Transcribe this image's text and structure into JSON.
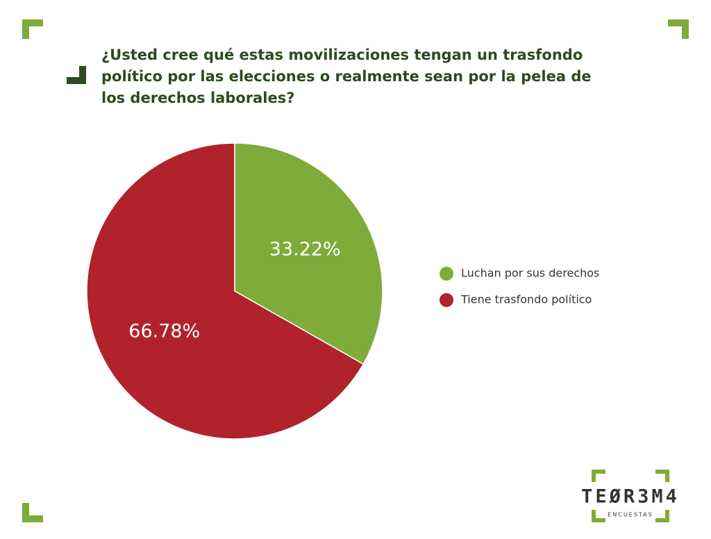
{
  "chart_data": {
    "type": "pie",
    "title": "¿Usted cree qué estas movilizaciones tengan un trasfondo político por las elecciones o realmente sean por la pelea de los derechos laborales?",
    "categories": [
      "Luchan por sus derechos",
      "Tiene trasfondo político"
    ],
    "values": [
      33.22,
      66.78
    ],
    "value_labels": [
      "33.22%",
      "66.78%"
    ],
    "colors": [
      "#7fab3b",
      "#b0232b"
    ]
  },
  "brand": {
    "name": "TEØR3M4",
    "tagline": "ENCUESTAS"
  }
}
